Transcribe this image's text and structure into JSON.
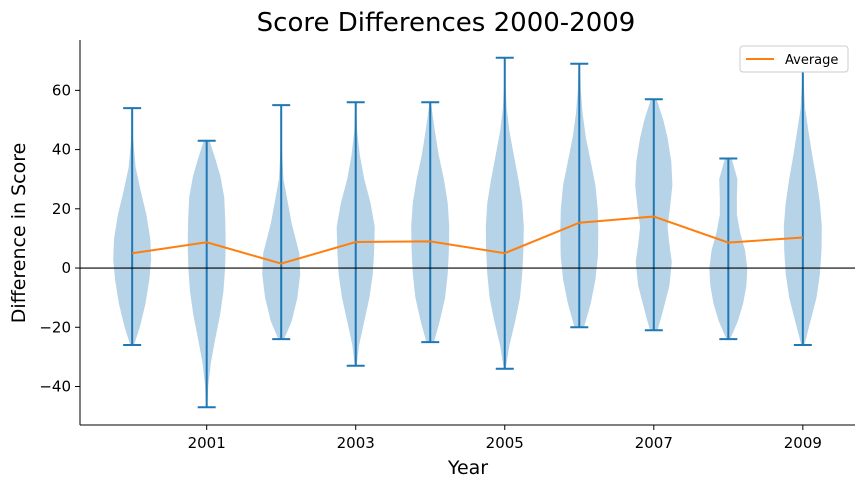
{
  "chart_data": {
    "type": "violin",
    "title": "Score Differences 2000-2009",
    "xlabel": "Year",
    "ylabel": "Difference in Score",
    "x_tick_labels": [
      "2001",
      "2003",
      "2005",
      "2007",
      "2009"
    ],
    "x_tick_values": [
      2001,
      2003,
      2005,
      2007,
      2009
    ],
    "xlim": [
      1999.3,
      2009.7
    ],
    "ylim": [
      -53,
      77
    ],
    "y_ticks": [
      -40,
      -20,
      0,
      20,
      40,
      60
    ],
    "y_tick_labels": [
      "−40",
      "−20",
      "0",
      "20",
      "40",
      "60"
    ],
    "reference_line_y": 0,
    "grid": false,
    "legend": {
      "position": "top-right",
      "entries": [
        "Average"
      ]
    },
    "colors": {
      "violin_fill": "#b7d3e8",
      "violin_edge": "#1f77b4",
      "average_line": "#ff7f0e",
      "zero_line": "#000000"
    },
    "violins": [
      {
        "year": 2000,
        "min": -26,
        "max": 54,
        "profile": [
          [
            -26,
            0.1
          ],
          [
            -20,
            0.4
          ],
          [
            -12,
            0.7
          ],
          [
            -4,
            0.9
          ],
          [
            3,
            1.0
          ],
          [
            10,
            0.95
          ],
          [
            18,
            0.75
          ],
          [
            26,
            0.45
          ],
          [
            34,
            0.18
          ],
          [
            44,
            0.05
          ],
          [
            54,
            0.02
          ]
        ]
      },
      {
        "year": 2001,
        "min": -47,
        "max": 43,
        "profile": [
          [
            -47,
            0.03
          ],
          [
            -40,
            0.08
          ],
          [
            -32,
            0.22
          ],
          [
            -24,
            0.45
          ],
          [
            -16,
            0.7
          ],
          [
            -8,
            0.88
          ],
          [
            0,
            0.97
          ],
          [
            8,
            1.0
          ],
          [
            16,
            0.98
          ],
          [
            24,
            0.92
          ],
          [
            31,
            0.72
          ],
          [
            37,
            0.45
          ],
          [
            43,
            0.15
          ]
        ]
      },
      {
        "year": 2002,
        "min": -24,
        "max": 55,
        "profile": [
          [
            -24,
            0.15
          ],
          [
            -18,
            0.55
          ],
          [
            -10,
            0.85
          ],
          [
            -2,
            1.0
          ],
          [
            5,
            0.95
          ],
          [
            10,
            0.75
          ],
          [
            15,
            0.55
          ],
          [
            22,
            0.35
          ],
          [
            30,
            0.12
          ],
          [
            40,
            0.04
          ],
          [
            55,
            0.02
          ]
        ]
      },
      {
        "year": 2003,
        "min": -33,
        "max": 56,
        "profile": [
          [
            -33,
            0.05
          ],
          [
            -26,
            0.18
          ],
          [
            -18,
            0.45
          ],
          [
            -10,
            0.72
          ],
          [
            -2,
            0.9
          ],
          [
            6,
            0.97
          ],
          [
            14,
            1.0
          ],
          [
            22,
            0.78
          ],
          [
            30,
            0.45
          ],
          [
            38,
            0.22
          ],
          [
            46,
            0.08
          ],
          [
            56,
            0.02
          ]
        ]
      },
      {
        "year": 2004,
        "min": -25,
        "max": 56,
        "profile": [
          [
            -25,
            0.2
          ],
          [
            -18,
            0.5
          ],
          [
            -10,
            0.78
          ],
          [
            -2,
            0.92
          ],
          [
            6,
            0.98
          ],
          [
            14,
            1.0
          ],
          [
            22,
            0.92
          ],
          [
            30,
            0.72
          ],
          [
            38,
            0.45
          ],
          [
            46,
            0.25
          ],
          [
            52,
            0.12
          ],
          [
            56,
            0.04
          ]
        ]
      },
      {
        "year": 2005,
        "min": -34,
        "max": 71,
        "profile": [
          [
            -34,
            0.05
          ],
          [
            -26,
            0.25
          ],
          [
            -18,
            0.55
          ],
          [
            -10,
            0.8
          ],
          [
            -2,
            0.92
          ],
          [
            6,
            0.98
          ],
          [
            14,
            1.0
          ],
          [
            22,
            0.92
          ],
          [
            30,
            0.72
          ],
          [
            38,
            0.48
          ],
          [
            46,
            0.25
          ],
          [
            54,
            0.1
          ],
          [
            62,
            0.04
          ],
          [
            71,
            0.02
          ]
        ]
      },
      {
        "year": 2006,
        "min": -20,
        "max": 69,
        "profile": [
          [
            -20,
            0.25
          ],
          [
            -12,
            0.6
          ],
          [
            -4,
            0.85
          ],
          [
            4,
            0.98
          ],
          [
            12,
            1.0
          ],
          [
            20,
            0.97
          ],
          [
            28,
            0.85
          ],
          [
            36,
            0.6
          ],
          [
            44,
            0.35
          ],
          [
            52,
            0.18
          ],
          [
            60,
            0.08
          ],
          [
            69,
            0.03
          ]
        ]
      },
      {
        "year": 2007,
        "min": -21,
        "max": 57,
        "profile": [
          [
            -21,
            0.2
          ],
          [
            -14,
            0.5
          ],
          [
            -6,
            0.82
          ],
          [
            2,
            0.95
          ],
          [
            8,
            0.82
          ],
          [
            14,
            0.72
          ],
          [
            20,
            0.85
          ],
          [
            28,
            0.98
          ],
          [
            36,
            0.92
          ],
          [
            44,
            0.72
          ],
          [
            50,
            0.5
          ],
          [
            57,
            0.15
          ]
        ]
      },
      {
        "year": 2008,
        "min": -24,
        "max": 37,
        "profile": [
          [
            -24,
            0.1
          ],
          [
            -18,
            0.5
          ],
          [
            -12,
            0.78
          ],
          [
            -6,
            0.95
          ],
          [
            0,
            1.0
          ],
          [
            6,
            0.88
          ],
          [
            12,
            0.62
          ],
          [
            18,
            0.45
          ],
          [
            24,
            0.45
          ],
          [
            30,
            0.48
          ],
          [
            37,
            0.18
          ]
        ]
      },
      {
        "year": 2009,
        "min": -26,
        "max": 69,
        "profile": [
          [
            -26,
            0.08
          ],
          [
            -18,
            0.4
          ],
          [
            -10,
            0.72
          ],
          [
            -2,
            0.9
          ],
          [
            6,
            0.98
          ],
          [
            14,
            1.0
          ],
          [
            22,
            0.9
          ],
          [
            30,
            0.72
          ],
          [
            38,
            0.5
          ],
          [
            46,
            0.3
          ],
          [
            54,
            0.12
          ],
          [
            62,
            0.05
          ],
          [
            69,
            0.02
          ]
        ]
      }
    ],
    "series": [
      {
        "name": "Average",
        "x": [
          2000,
          2001,
          2002,
          2003,
          2004,
          2005,
          2006,
          2007,
          2008,
          2009
        ],
        "values": [
          5.0,
          8.7,
          1.5,
          8.8,
          9.0,
          5.0,
          15.3,
          17.4,
          8.6,
          10.3
        ]
      }
    ]
  }
}
